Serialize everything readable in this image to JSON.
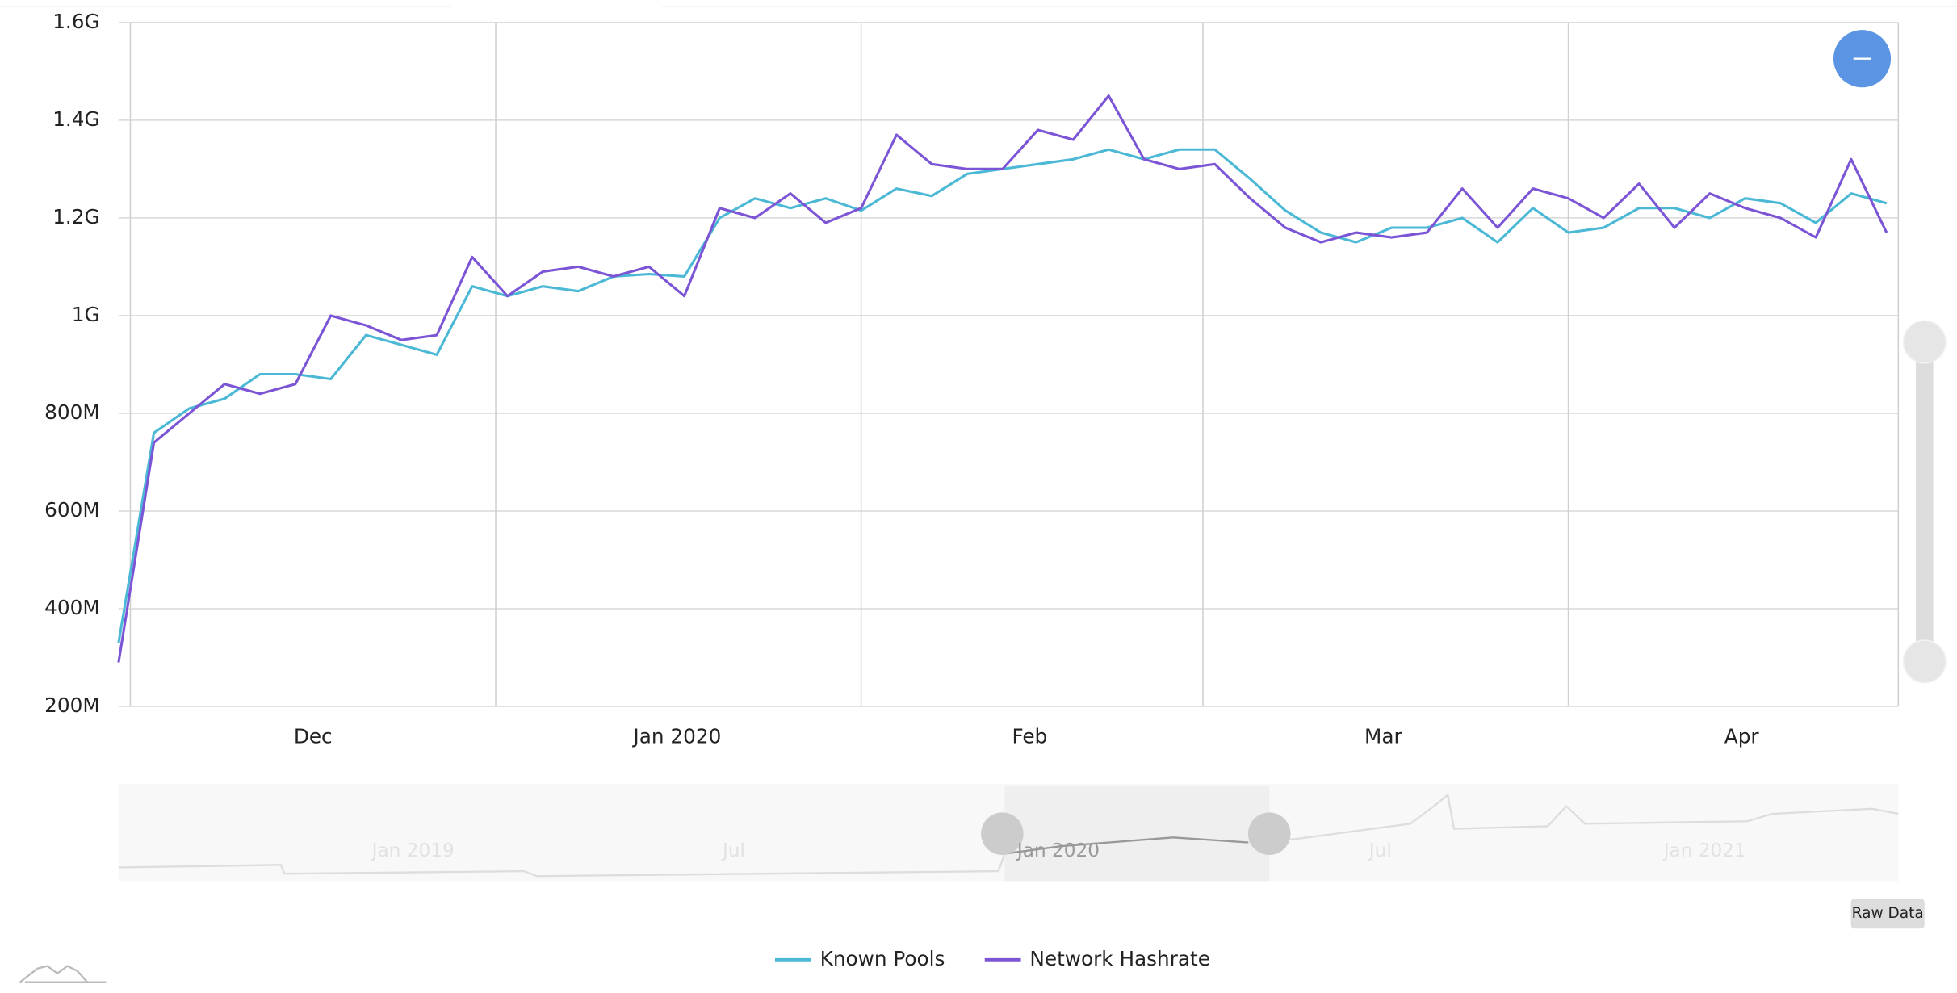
{
  "chart_data": {
    "type": "line",
    "x": [
      -1,
      2,
      5,
      8,
      11,
      14,
      17,
      20,
      23,
      26,
      29,
      32,
      35,
      38,
      41,
      44,
      47,
      50,
      53,
      56,
      59,
      62,
      65,
      68,
      71,
      74,
      77,
      80,
      83,
      86,
      89,
      92,
      95,
      98,
      101,
      104,
      107,
      110,
      113,
      116,
      119,
      122,
      125,
      128,
      131,
      134,
      137,
      140,
      143,
      146,
      149
    ],
    "xlim": [
      -1,
      150
    ],
    "xticks": [
      {
        "value": 15.5,
        "label": "Dec"
      },
      {
        "value": 46.4,
        "label": "Jan 2020"
      },
      {
        "value": 76.3,
        "label": "Feb"
      },
      {
        "value": 106.3,
        "label": "Mar"
      },
      {
        "value": 136.7,
        "label": "Apr"
      }
    ],
    "x_grid": [
      0,
      31,
      62,
      91,
      122,
      150
    ],
    "ylim": [
      200000000.0,
      1600000000.0
    ],
    "yticks": [
      {
        "value": 200000000.0,
        "label": "200M"
      },
      {
        "value": 400000000.0,
        "label": "400M"
      },
      {
        "value": 600000000.0,
        "label": "600M"
      },
      {
        "value": 800000000.0,
        "label": "800M"
      },
      {
        "value": 1000000000.0,
        "label": "1G"
      },
      {
        "value": 1200000000.0,
        "label": "1.2G"
      },
      {
        "value": 1400000000.0,
        "label": "1.4G"
      },
      {
        "value": 1600000000.0,
        "label": "1.6G"
      }
    ],
    "grid": true,
    "series": [
      {
        "name": "Known Pools",
        "color": "#4bb8d6",
        "values": [
          330000000.0,
          760000000.0,
          810000000.0,
          830000000.0,
          880000000.0,
          880000000.0,
          870000000.0,
          960000000.0,
          940000000.0,
          920000000.0,
          1060000000.0,
          1040000000.0,
          1060000000.0,
          1050000000.0,
          1080000000.0,
          1085000000.0,
          1080000000.0,
          1200000000.0,
          1240000000.0,
          1220000000.0,
          1240000000.0,
          1215000000.0,
          1260000000.0,
          1245000000.0,
          1290000000.0,
          1300000000.0,
          1310000000.0,
          1320000000.0,
          1340000000.0,
          1320000000.0,
          1340000000.0,
          1340000000.0,
          1280000000.0,
          1215000000.0,
          1170000000.0,
          1150000000.0,
          1180000000.0,
          1180000000.0,
          1200000000.0,
          1150000000.0,
          1220000000.0,
          1170000000.0,
          1180000000.0,
          1220000000.0,
          1220000000.0,
          1200000000.0,
          1240000000.0,
          1230000000.0,
          1190000000.0,
          1250000000.0,
          1230000000.0
        ]
      },
      {
        "name": "Network Hashrate",
        "color": "#7b55d6",
        "values": [
          290000000.0,
          740000000.0,
          800000000.0,
          860000000.0,
          840000000.0,
          860000000.0,
          1000000000.0,
          980000000.0,
          950000000.0,
          960000000.0,
          1120000000.0,
          1040000000.0,
          1090000000.0,
          1100000000.0,
          1080000000.0,
          1100000000.0,
          1040000000.0,
          1220000000.0,
          1200000000.0,
          1250000000.0,
          1190000000.0,
          1220000000.0,
          1370000000.0,
          1310000000.0,
          1300000000.0,
          1300000000.0,
          1380000000.0,
          1360000000.0,
          1450000000.0,
          1320000000.0,
          1300000000.0,
          1310000000.0,
          1240000000.0,
          1180000000.0,
          1150000000.0,
          1170000000.0,
          1160000000.0,
          1170000000.0,
          1260000000.0,
          1180000000.0,
          1260000000.0,
          1240000000.0,
          1200000000.0,
          1270000000.0,
          1180000000.0,
          1250000000.0,
          1220000000.0,
          1200000000.0,
          1160000000.0,
          1320000000.0,
          1170000000.0
        ]
      }
    ]
  },
  "navigator": {
    "labels": [
      "Jan 2019",
      "Jul",
      "Jan 2020",
      "Jul",
      "Jan 2021"
    ]
  },
  "buttons": {
    "raw_data": "Raw Data"
  }
}
